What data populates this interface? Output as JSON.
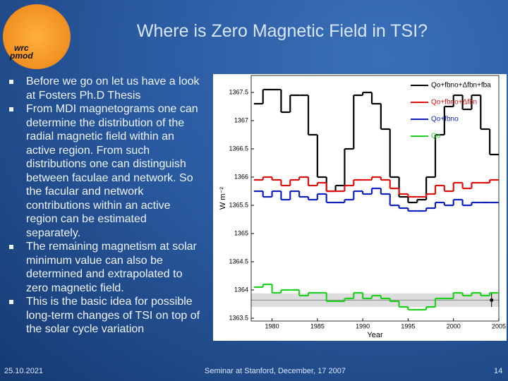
{
  "logo": {
    "text_top": "wrc",
    "text_bottom": "pmod"
  },
  "header": {
    "title": "Where is Zero Magnetic Field in TSI?"
  },
  "bullets": [
    "Before we go on let us have a look at Fosters Ph.D Thesis",
    "From MDI magnetograms one can determine the distribution of the radial magnetic field within an active region. From such distributions one can distinguish between faculae and network. So the facular and network contributions within an active region can be estimated separately.",
    "The remaining magnetism at solar minimum value can also be determined and extrapolated to zero magnetic field.",
    "This is the basic idea for possible long-term changes of TSI on top of the solar cycle variation"
  ],
  "footer": {
    "date": "25.10.2021",
    "center": "Seminar at Stanford, December, 17 2007",
    "page": "14"
  },
  "chart_data": {
    "type": "line",
    "step": true,
    "x_label": "Year",
    "y_label": "W m⁻²",
    "x": [
      1978,
      1979,
      1980,
      1981,
      1982,
      1983,
      1984,
      1985,
      1986,
      1987,
      1988,
      1989,
      1990,
      1991,
      1992,
      1993,
      1994,
      1995,
      1996,
      1997,
      1998,
      1999,
      2000,
      2001,
      2002,
      2003,
      2004
    ],
    "series": [
      {
        "name": "Qo+fbno+Δfbn+fba",
        "color": "#000000",
        "values": [
          1367.3,
          1367.55,
          1367.55,
          1367.15,
          1367.45,
          1367.45,
          1366.75,
          1366.0,
          1365.75,
          1365.85,
          1366.5,
          1367.45,
          1367.5,
          1367.3,
          1366.85,
          1366.0,
          1365.65,
          1365.55,
          1365.6,
          1366.0,
          1366.75,
          1367.25,
          1367.45,
          1367.2,
          1367.45,
          1366.85,
          1366.4
        ]
      },
      {
        "name": "Qo+fbno+Δfbn",
        "color": "#e01010",
        "values": [
          1365.95,
          1366.0,
          1365.95,
          1365.85,
          1365.95,
          1366.0,
          1365.85,
          1365.9,
          1365.75,
          1365.75,
          1365.85,
          1365.95,
          1365.95,
          1366.0,
          1365.95,
          1365.8,
          1365.7,
          1365.65,
          1365.65,
          1365.7,
          1365.85,
          1365.75,
          1365.9,
          1365.8,
          1365.9,
          1365.9,
          1365.95
        ]
      },
      {
        "name": "Qo+fbno",
        "color": "#1020c0",
        "values": [
          1365.75,
          1365.65,
          1365.75,
          1365.6,
          1365.75,
          1365.65,
          1365.6,
          1365.7,
          1365.55,
          1365.55,
          1365.6,
          1365.75,
          1365.7,
          1365.8,
          1365.7,
          1365.5,
          1365.45,
          1365.4,
          1365.4,
          1365.45,
          1365.55,
          1365.5,
          1365.6,
          1365.5,
          1365.55,
          1365.55,
          1365.55
        ]
      },
      {
        "name": "Qo",
        "color": "#20d020",
        "values": [
          1364.05,
          1364.1,
          1363.95,
          1364.0,
          1364.0,
          1363.9,
          1363.95,
          1363.95,
          1363.8,
          1363.8,
          1363.85,
          1363.95,
          1363.85,
          1363.9,
          1363.85,
          1363.8,
          1363.7,
          1363.65,
          1363.65,
          1363.7,
          1363.85,
          1363.85,
          1363.95,
          1363.9,
          1363.95,
          1363.9,
          1363.95
        ]
      }
    ],
    "reference": {
      "x": 2004.2,
      "value": 1363.82,
      "error": 0.12
    },
    "xlim": [
      1977.7,
      2005
    ],
    "xticks": [
      1980,
      1985,
      1990,
      1995,
      2000,
      2005
    ],
    "ylim": [
      1363.45,
      1367.8
    ],
    "yticks": [
      1363.5,
      1364,
      1364.5,
      1365,
      1365.5,
      1366,
      1366.5,
      1367,
      1367.5
    ],
    "legend": "upper-right"
  }
}
